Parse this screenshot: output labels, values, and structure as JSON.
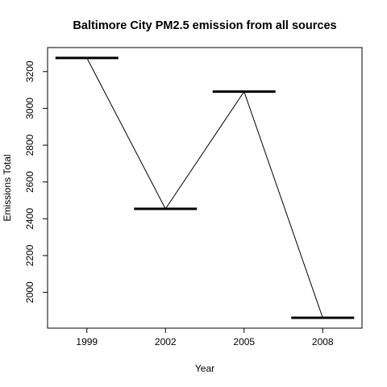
{
  "chart_data": {
    "type": "line",
    "title": "Baltimore City PM2.5 emission from all sources",
    "xlabel": "Year",
    "ylabel": "Emissions Total",
    "categories": [
      "1999",
      "2002",
      "2005",
      "2008"
    ],
    "values": [
      3274,
      2454,
      3091,
      1862
    ],
    "ylim": [
      1862,
      3274
    ],
    "yticks": [
      2000,
      2200,
      2400,
      2600,
      2800,
      3000,
      3200
    ],
    "grid": false,
    "legend": "none"
  }
}
